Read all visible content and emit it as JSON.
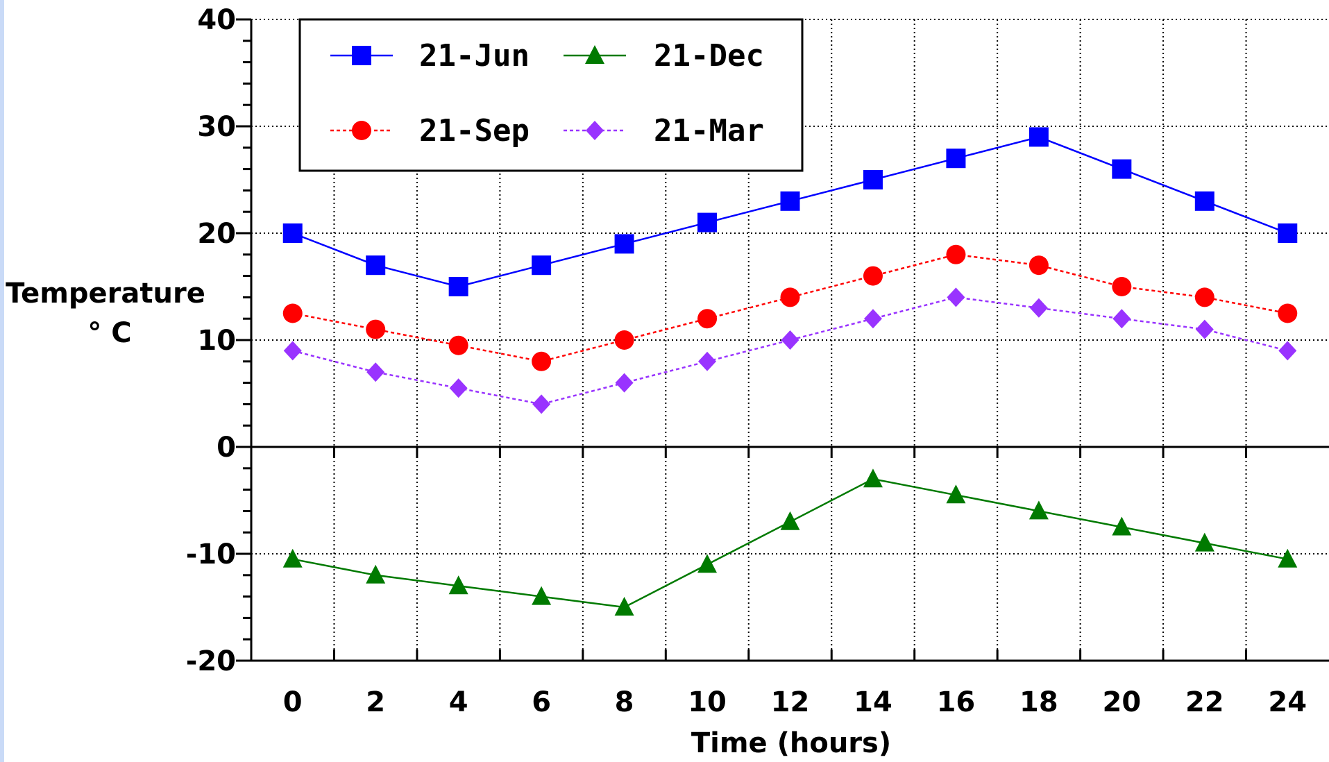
{
  "chart_data": {
    "type": "line",
    "title": "",
    "xlabel": "Time (hours)",
    "ylabel": [
      "Temperature",
      "° C"
    ],
    "x": [
      0,
      2,
      4,
      6,
      8,
      10,
      12,
      14,
      16,
      18,
      20,
      22,
      24
    ],
    "xticks": [
      "0",
      "2",
      "4",
      "6",
      "8",
      "10",
      "12",
      "14",
      "16",
      "18",
      "20",
      "22",
      "24"
    ],
    "yticks": [
      "40",
      "30",
      "20",
      "10",
      "0",
      "-10",
      "-20"
    ],
    "yticks_values": [
      40,
      30,
      20,
      10,
      0,
      -10,
      -20
    ],
    "xlim": [
      -1,
      25
    ],
    "ylim": [
      -20,
      40
    ],
    "grid": true,
    "legend_position": "top-left",
    "series": [
      {
        "name": "21-Jun",
        "color": "#0000ff",
        "marker": "square",
        "line_style": "solid",
        "values": [
          20,
          17,
          15,
          17,
          19,
          21,
          23,
          25,
          27,
          29,
          26,
          23,
          20
        ]
      },
      {
        "name": "21-Dec",
        "color": "#007a00",
        "marker": "triangle",
        "line_style": "solid",
        "values": [
          -10.5,
          -12,
          -13,
          -14,
          -15,
          -11,
          -7,
          -3,
          -4.5,
          -6,
          -7.5,
          -9,
          -10.5
        ]
      },
      {
        "name": "21-Sep",
        "color": "#ff0000",
        "marker": "circle",
        "line_style": "dashed",
        "values": [
          12.5,
          11,
          9.5,
          8,
          10,
          12,
          14,
          16,
          18,
          17,
          15,
          14,
          12.5
        ]
      },
      {
        "name": "21-Mar",
        "color": "#9933ff",
        "marker": "diamond",
        "line_style": "dashed",
        "values": [
          9,
          7,
          5.5,
          4,
          6,
          8,
          10,
          12,
          14,
          13,
          12,
          11,
          9
        ]
      }
    ]
  }
}
